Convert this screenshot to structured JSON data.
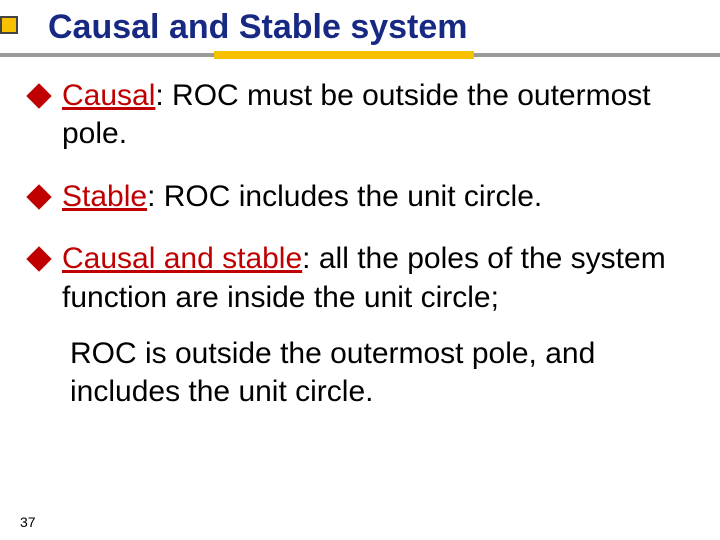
{
  "slide": {
    "title": "Causal and Stable system",
    "colors": {
      "title": "#172983",
      "accent_red": "#c00000",
      "accent_yellow": "#f7c000",
      "bar_grey": "#9a9a9a",
      "body_text": "#000000",
      "background": "#ffffff"
    },
    "typography": {
      "title_fontsize": 34,
      "body_fontsize": 30,
      "pagenum_fontsize": 14,
      "font_family": "Tahoma"
    },
    "bullets": [
      {
        "lead": "Causal",
        "rest": ": ROC must be outside the outermost pole."
      },
      {
        "lead": "Stable",
        "rest": ": ROC includes the unit circle."
      },
      {
        "lead": "Causal and stable",
        "rest": ":  all the poles of the system function are inside the unit circle;"
      }
    ],
    "continuation": "ROC is outside the outermost pole, and includes the unit circle.",
    "page_number": "37"
  }
}
